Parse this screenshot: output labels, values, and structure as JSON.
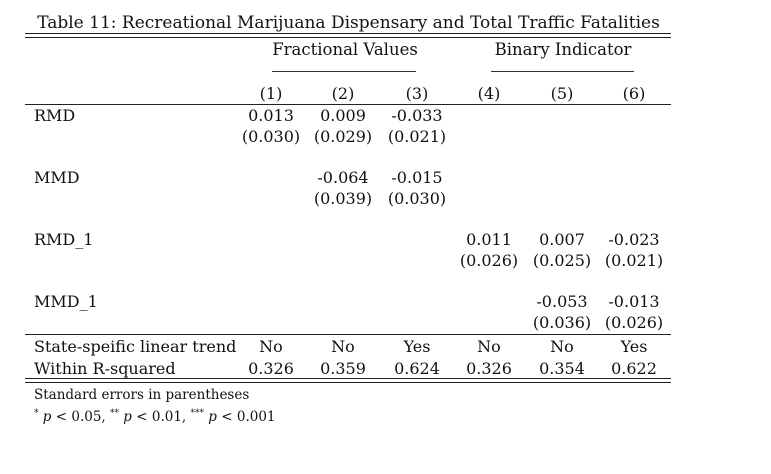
{
  "table": {
    "title": "Table 11: Recreational Marijuana Dispensary and Total Traffic Fatalities",
    "groups": [
      "Fractional Values",
      "Binary Indicator"
    ],
    "columns": [
      "(1)",
      "(2)",
      "(3)",
      "(4)",
      "(5)",
      "(6)"
    ],
    "rows": [
      {
        "label": "RMD",
        "coef": [
          "0.013",
          "0.009",
          "-0.033",
          "",
          "",
          ""
        ],
        "se": [
          "(0.030)",
          "(0.029)",
          "(0.021)",
          "",
          "",
          ""
        ]
      },
      {
        "label": "MMD",
        "coef": [
          "",
          "-0.064",
          "-0.015",
          "",
          "",
          ""
        ],
        "se": [
          "",
          "(0.039)",
          "(0.030)",
          "",
          "",
          ""
        ]
      },
      {
        "label": "RMD_1",
        "coef": [
          "",
          "",
          "",
          "0.011",
          "0.007",
          "-0.023"
        ],
        "se": [
          "",
          "",
          "",
          "(0.026)",
          "(0.025)",
          "(0.021)"
        ]
      },
      {
        "label": "MMD_1",
        "coef": [
          "",
          "",
          "",
          "",
          "-0.053",
          "-0.013"
        ],
        "se": [
          "",
          "",
          "",
          "",
          "(0.036)",
          "(0.026)"
        ]
      }
    ],
    "stats": [
      {
        "label": "State-speific linear trend",
        "values": [
          "No",
          "No",
          "Yes",
          "No",
          "No",
          "Yes"
        ]
      },
      {
        "label": "Within R-squared",
        "values": [
          "0.326",
          "0.359",
          "0.624",
          "0.326",
          "0.354",
          "0.622"
        ]
      }
    ],
    "footnotes": {
      "se_note": "Standard errors in parentheses",
      "stars": [
        "*",
        "**",
        "***"
      ],
      "sig_p": "p",
      "sig_thresholds": [
        "< 0.05,",
        "< 0.01,",
        "< 0.001"
      ]
    }
  }
}
